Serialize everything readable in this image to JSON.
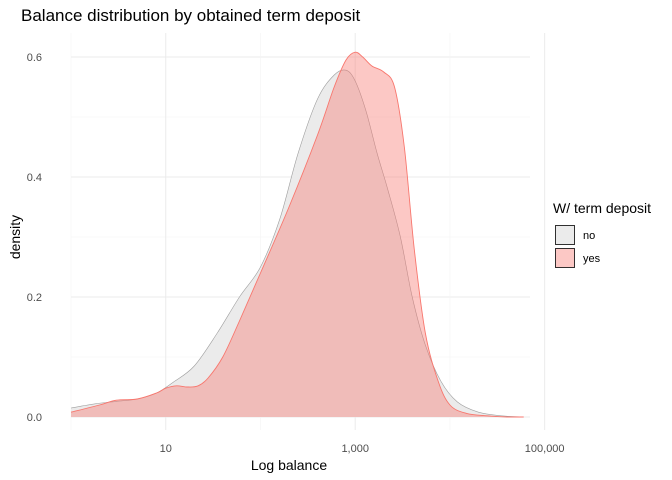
{
  "chart_data": {
    "type": "area",
    "title": "Balance distribution by obtained term deposit",
    "xlabel": "Log balance",
    "ylabel": "density",
    "x_scale": "log10",
    "xlim": [
      1,
      70000
    ],
    "ylim": [
      0,
      0.62
    ],
    "x_ticks": [
      10,
      1000,
      100000
    ],
    "x_tick_labels": [
      "10",
      "1,000",
      "100,000"
    ],
    "y_ticks": [
      0.0,
      0.2,
      0.4,
      0.6
    ],
    "y_tick_labels": [
      "0.0",
      "0.2",
      "0.4",
      "0.6"
    ],
    "grid": true,
    "legend": {
      "title": "W/ term deposit",
      "position": "right"
    },
    "series": [
      {
        "name": "no",
        "fill": "#ebebeb",
        "stroke": "#9e9e9e",
        "x": [
          1,
          1.8,
          3,
          5,
          8,
          12,
          20,
          35,
          60,
          100,
          160,
          250,
          400,
          600,
          800,
          1000,
          1300,
          1700,
          2200,
          3000,
          4000,
          5500,
          8000,
          12000,
          20000,
          35000,
          60000
        ],
        "y": [
          0.015,
          0.022,
          0.026,
          0.03,
          0.04,
          0.058,
          0.085,
          0.14,
          0.2,
          0.25,
          0.33,
          0.44,
          0.53,
          0.57,
          0.578,
          0.56,
          0.51,
          0.44,
          0.38,
          0.3,
          0.2,
          0.12,
          0.06,
          0.025,
          0.008,
          0.002,
          0.0
        ]
      },
      {
        "name": "yes",
        "fill": "#f8766d",
        "stroke": "#f8766d",
        "x": [
          1,
          2,
          3,
          5,
          8,
          10,
          13,
          17,
          22,
          28,
          40,
          60,
          100,
          200,
          400,
          600,
          800,
          1000,
          1200,
          1500,
          2000,
          2600,
          3300,
          4200,
          5500,
          7500,
          10000,
          15000,
          25000,
          40000,
          60000
        ],
        "y": [
          0.008,
          0.02,
          0.028,
          0.03,
          0.04,
          0.048,
          0.052,
          0.05,
          0.052,
          0.065,
          0.1,
          0.16,
          0.24,
          0.35,
          0.47,
          0.55,
          0.595,
          0.608,
          0.6,
          0.585,
          0.575,
          0.55,
          0.45,
          0.28,
          0.14,
          0.06,
          0.02,
          0.006,
          0.002,
          0.0,
          0.0
        ]
      }
    ]
  }
}
